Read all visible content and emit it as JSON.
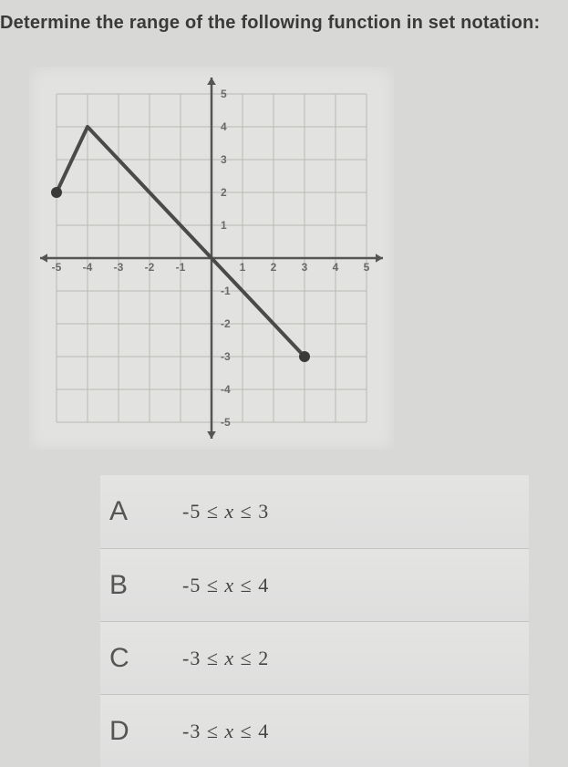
{
  "question": "Determine the range of the following function in set notation:",
  "graph": {
    "xmin": -5,
    "xmax": 5,
    "ymin": -5,
    "ymax": 5,
    "tick_step": 1,
    "axis_color": "#555555",
    "grid_color": "#b8b8b4",
    "background_color": "#e2e2e0",
    "line_color": "#4a4a48",
    "line_width": 4,
    "point_fill": "#3a3a38",
    "point_radius": 6,
    "arrow_size": 8,
    "x_ticks": [
      -5,
      -4,
      -3,
      -2,
      -1,
      1,
      2,
      3,
      4,
      5
    ],
    "y_ticks": [
      -5,
      -4,
      -3,
      -2,
      -1,
      1,
      2,
      3,
      4,
      5
    ],
    "tick_label_color": "#6a6a6a",
    "tick_fontsize": 12,
    "function_points": [
      {
        "x": -5,
        "y": 2,
        "closed": true
      },
      {
        "x": -4,
        "y": 4,
        "closed": false
      },
      {
        "x": 3,
        "y": -3,
        "closed": true
      }
    ]
  },
  "answers": [
    {
      "letter": "A",
      "lo": "-5",
      "hi": "3"
    },
    {
      "letter": "B",
      "lo": "-5",
      "hi": "4"
    },
    {
      "letter": "C",
      "lo": "-3",
      "hi": "2"
    },
    {
      "letter": "D",
      "lo": "-3",
      "hi": "4"
    }
  ]
}
